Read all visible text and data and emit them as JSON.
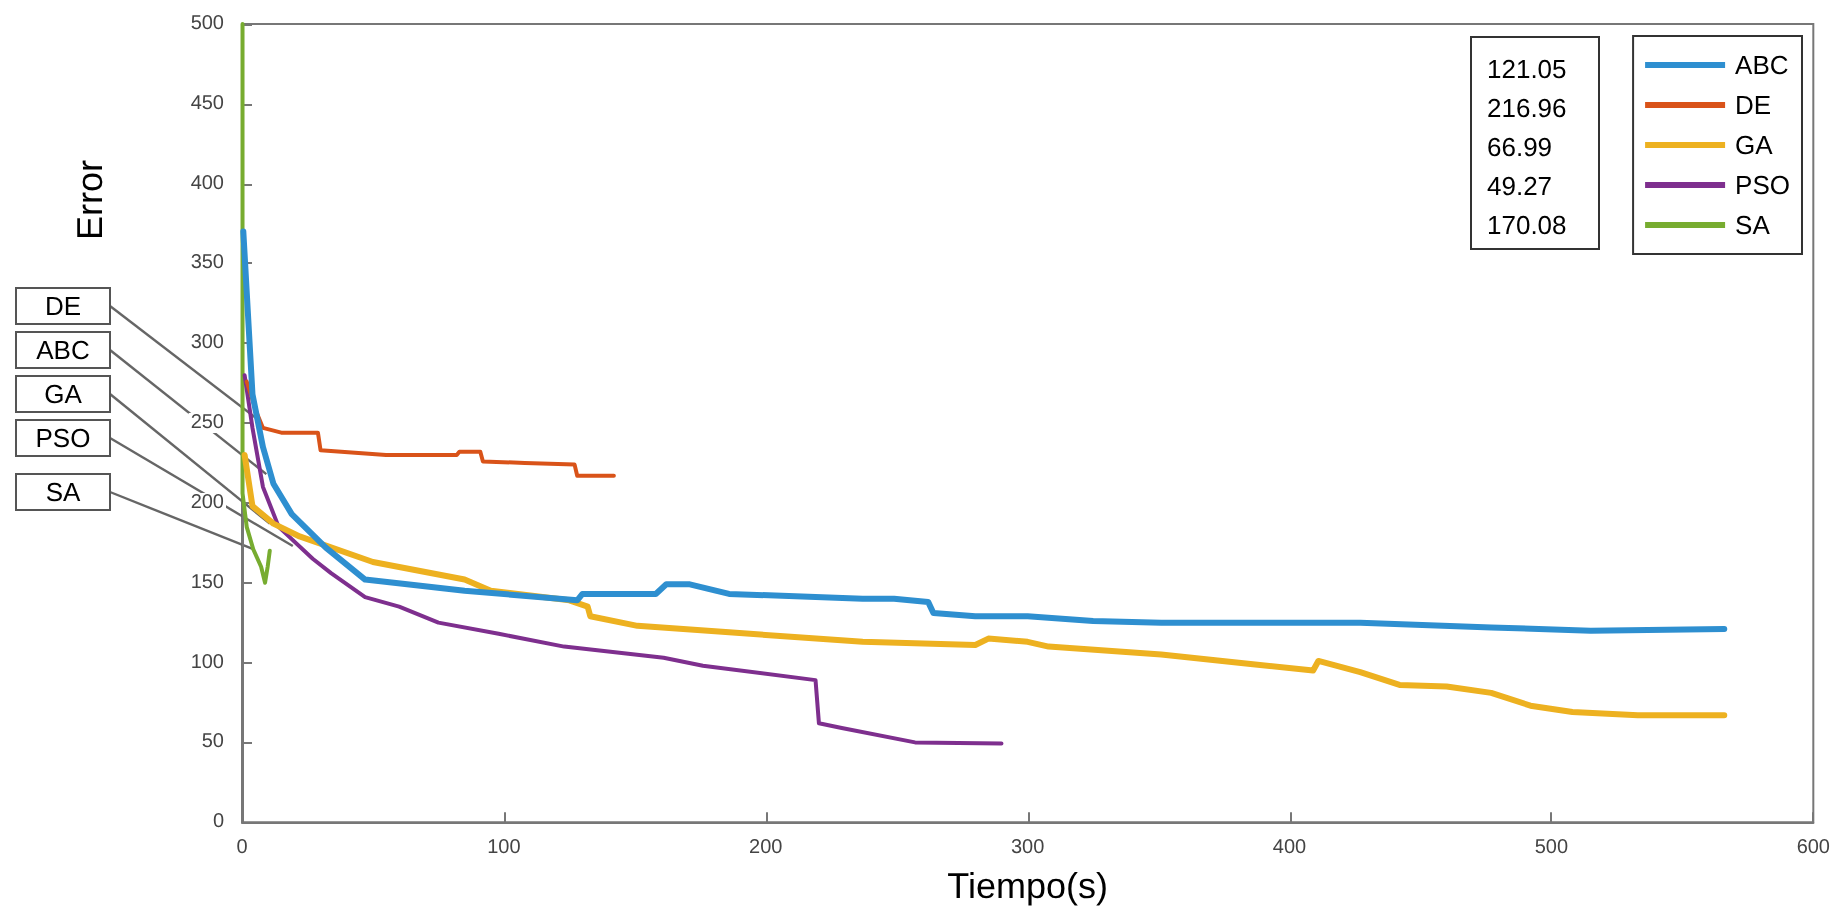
{
  "chart_data": {
    "type": "line",
    "xlabel": "Tiempo(s)",
    "ylabel": "Error",
    "xlim": [
      0,
      600
    ],
    "xticks": [
      0,
      100,
      200,
      300,
      400,
      500,
      600
    ],
    "ylim": [
      0,
      500
    ],
    "yticks": [
      0,
      50,
      100,
      150,
      200,
      250,
      300,
      350,
      400,
      450,
      500
    ],
    "grid": false,
    "legend": "top right",
    "marker": "none",
    "line_style": "solid",
    "series": [
      {
        "name": "ABC",
        "color": "#2e8fd0",
        "x": [
          0.5,
          4,
          8,
          12,
          19,
          32,
          47,
          85,
          128,
          130,
          158,
          162,
          171,
          186,
          237,
          249,
          262,
          264,
          280,
          300,
          325,
          351,
          427,
          477,
          515,
          566
        ],
        "values": [
          370,
          268,
          235,
          212,
          193,
          172,
          152,
          145,
          139,
          143,
          143,
          149,
          149,
          143,
          140,
          140,
          138,
          131,
          129,
          129,
          126,
          125,
          125,
          122,
          120,
          121.05
        ]
      },
      {
        "name": "DE",
        "color": "#d95319",
        "x": [
          1.8,
          5.5,
          8,
          15,
          29,
          30,
          55,
          82,
          83,
          91,
          92,
          108,
          127,
          128,
          142
        ],
        "values": [
          276,
          257,
          247,
          244,
          244,
          233,
          230,
          230,
          232,
          232,
          226,
          225,
          224,
          217,
          216.96
        ]
      },
      {
        "name": "GA",
        "color": "#edb120",
        "x": [
          1,
          4,
          12,
          22,
          50,
          85,
          95,
          125,
          132,
          133,
          151,
          186,
          211,
          237,
          280,
          285,
          300,
          308,
          351,
          386,
          409,
          411,
          427,
          442,
          460,
          477,
          492,
          508,
          533,
          563,
          566
        ],
        "values": [
          230,
          198,
          187,
          179,
          163,
          152,
          145,
          139,
          135,
          129,
          123,
          119,
          116,
          113,
          111,
          115,
          113,
          110,
          105,
          99,
          95,
          101,
          94,
          86,
          85,
          81,
          73,
          69,
          67,
          67,
          66.99
        ]
      },
      {
        "name": "PSO",
        "color": "#7e2f8e",
        "x": [
          1,
          4,
          8,
          14,
          27,
          34,
          47,
          60,
          75,
          98,
          123,
          161,
          176,
          219,
          220.3,
          229,
          257,
          290
        ],
        "values": [
          280,
          247,
          210,
          185,
          165,
          156,
          141,
          135,
          125,
          118,
          110,
          103,
          98,
          89,
          62,
          59,
          50,
          49.27
        ]
      },
      {
        "name": "SA",
        "color": "#77ac30",
        "x": [
          0.2,
          0.2,
          1.8,
          4.3,
          7.3,
          8.8,
          9.8,
          10.6
        ],
        "values": [
          500,
          206,
          185,
          171,
          160,
          150,
          160,
          170.08
        ]
      }
    ],
    "annotations": [
      {
        "text": "DE",
        "x": 5.5,
        "y": 253
      },
      {
        "text": "ABC",
        "x": 9.3,
        "y": 218
      },
      {
        "text": "GA",
        "x": 10.6,
        "y": 187
      },
      {
        "text": "PSO",
        "x": 19.4,
        "y": 173
      },
      {
        "text": "SA",
        "x": 4.3,
        "y": 171
      },
      "121.05\n216.96\n66.99\n49.27\n170.08"
    ]
  }
}
